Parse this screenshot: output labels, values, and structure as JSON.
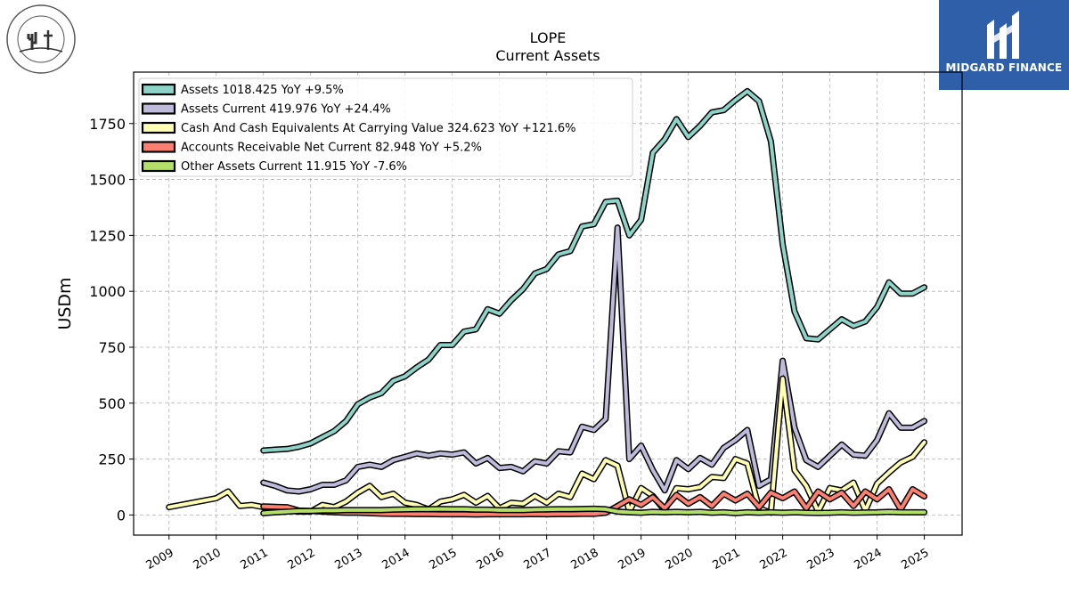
{
  "logos": {
    "left_org": "Grand Canyon University",
    "right_brand": "MIDGARD FINANCE",
    "right_color": "#2e5fa8"
  },
  "chart_data": {
    "type": "line",
    "title": "LOPE",
    "subtitle": "Current  Assets",
    "ylabel": "USDm",
    "xlabel": "",
    "xlim": [
      2008.25,
      2025.8
    ],
    "ylim": [
      -90,
      1980
    ],
    "x_ticks": [
      2009,
      2010,
      2011,
      2012,
      2013,
      2014,
      2015,
      2016,
      2017,
      2018,
      2019,
      2020,
      2021,
      2022,
      2023,
      2024,
      2025
    ],
    "y_ticks": [
      0,
      250,
      500,
      750,
      1000,
      1250,
      1500,
      1750
    ],
    "grid": true,
    "legend_position": "top-left",
    "series": [
      {
        "name": "Assets  1018.425 YoY +9.5%",
        "color": "#8dd3c7",
        "points": [
          [
            2011,
            288
          ],
          [
            2011.25,
            292
          ],
          [
            2011.5,
            295
          ],
          [
            2011.75,
            305
          ],
          [
            2012,
            320
          ],
          [
            2012.25,
            348
          ],
          [
            2012.5,
            375
          ],
          [
            2012.75,
            420
          ],
          [
            2013,
            495
          ],
          [
            2013.25,
            525
          ],
          [
            2013.5,
            545
          ],
          [
            2013.75,
            600
          ],
          [
            2014,
            620
          ],
          [
            2014.25,
            660
          ],
          [
            2014.5,
            695
          ],
          [
            2014.75,
            760
          ],
          [
            2015,
            760
          ],
          [
            2015.25,
            820
          ],
          [
            2015.5,
            830
          ],
          [
            2015.75,
            920
          ],
          [
            2016,
            900
          ],
          [
            2016.25,
            960
          ],
          [
            2016.5,
            1010
          ],
          [
            2016.75,
            1080
          ],
          [
            2017,
            1100
          ],
          [
            2017.25,
            1165
          ],
          [
            2017.5,
            1180
          ],
          [
            2017.75,
            1290
          ],
          [
            2018,
            1300
          ],
          [
            2018.25,
            1400
          ],
          [
            2018.5,
            1405
          ],
          [
            2018.75,
            1250
          ],
          [
            2019,
            1320
          ],
          [
            2019.25,
            1620
          ],
          [
            2019.5,
            1680
          ],
          [
            2019.75,
            1770
          ],
          [
            2020,
            1690
          ],
          [
            2020.25,
            1740
          ],
          [
            2020.5,
            1800
          ],
          [
            2020.75,
            1810
          ],
          [
            2021,
            1855
          ],
          [
            2021.25,
            1895
          ],
          [
            2021.5,
            1850
          ],
          [
            2021.75,
            1670
          ],
          [
            2022,
            1210
          ],
          [
            2022.25,
            910
          ],
          [
            2022.5,
            790
          ],
          [
            2022.75,
            785
          ],
          [
            2023,
            830
          ],
          [
            2023.25,
            875
          ],
          [
            2023.5,
            845
          ],
          [
            2023.75,
            865
          ],
          [
            2024,
            930
          ],
          [
            2024.25,
            1040
          ],
          [
            2024.5,
            990
          ],
          [
            2024.75,
            990
          ],
          [
            2025,
            1018
          ]
        ]
      },
      {
        "name": "Assets Current  419.976 YoY +24.4%",
        "color": "#bebada",
        "points": [
          [
            2011,
            145
          ],
          [
            2011.25,
            130
          ],
          [
            2011.5,
            110
          ],
          [
            2011.75,
            105
          ],
          [
            2012,
            115
          ],
          [
            2012.25,
            135
          ],
          [
            2012.5,
            135
          ],
          [
            2012.75,
            155
          ],
          [
            2013,
            215
          ],
          [
            2013.25,
            225
          ],
          [
            2013.5,
            215
          ],
          [
            2013.75,
            245
          ],
          [
            2014,
            260
          ],
          [
            2014.25,
            275
          ],
          [
            2014.5,
            265
          ],
          [
            2014.75,
            275
          ],
          [
            2015,
            270
          ],
          [
            2015.25,
            280
          ],
          [
            2015.5,
            230
          ],
          [
            2015.75,
            255
          ],
          [
            2016,
            210
          ],
          [
            2016.25,
            215
          ],
          [
            2016.5,
            195
          ],
          [
            2016.75,
            240
          ],
          [
            2017,
            230
          ],
          [
            2017.25,
            285
          ],
          [
            2017.5,
            280
          ],
          [
            2017.75,
            395
          ],
          [
            2018,
            380
          ],
          [
            2018.25,
            430
          ],
          [
            2018.5,
            1285
          ],
          [
            2018.75,
            250
          ],
          [
            2019,
            310
          ],
          [
            2019.25,
            200
          ],
          [
            2019.5,
            110
          ],
          [
            2019.75,
            245
          ],
          [
            2020,
            205
          ],
          [
            2020.25,
            255
          ],
          [
            2020.5,
            225
          ],
          [
            2020.75,
            300
          ],
          [
            2021,
            335
          ],
          [
            2021.25,
            380
          ],
          [
            2021.5,
            130
          ],
          [
            2021.75,
            160
          ],
          [
            2022,
            690
          ],
          [
            2022.25,
            390
          ],
          [
            2022.5,
            245
          ],
          [
            2022.75,
            215
          ],
          [
            2023,
            265
          ],
          [
            2023.25,
            315
          ],
          [
            2023.5,
            270
          ],
          [
            2023.75,
            265
          ],
          [
            2024,
            335
          ],
          [
            2024.25,
            455
          ],
          [
            2024.5,
            390
          ],
          [
            2024.75,
            390
          ],
          [
            2025,
            420
          ]
        ]
      },
      {
        "name": "Cash And Cash Equivalents At Carrying Value  324.623 YoY +121.6%",
        "color": "#ffffb3",
        "points": [
          [
            2009,
            35
          ],
          [
            2009.25,
            45
          ],
          [
            2009.5,
            55
          ],
          [
            2009.75,
            65
          ],
          [
            2010,
            75
          ],
          [
            2010.25,
            105
          ],
          [
            2010.5,
            40
          ],
          [
            2010.75,
            45
          ],
          [
            2011,
            35
          ],
          [
            2011.25,
            28
          ],
          [
            2011.5,
            20
          ],
          [
            2011.75,
            15
          ],
          [
            2012,
            15
          ],
          [
            2012.25,
            45
          ],
          [
            2012.5,
            35
          ],
          [
            2012.75,
            60
          ],
          [
            2013,
            100
          ],
          [
            2013.25,
            130
          ],
          [
            2013.5,
            80
          ],
          [
            2013.75,
            95
          ],
          [
            2014,
            55
          ],
          [
            2014.25,
            45
          ],
          [
            2014.5,
            25
          ],
          [
            2014.75,
            60
          ],
          [
            2015,
            70
          ],
          [
            2015.25,
            90
          ],
          [
            2015.5,
            55
          ],
          [
            2015.75,
            85
          ],
          [
            2016,
            30
          ],
          [
            2016.25,
            55
          ],
          [
            2016.5,
            50
          ],
          [
            2016.75,
            85
          ],
          [
            2017,
            55
          ],
          [
            2017.25,
            95
          ],
          [
            2017.5,
            80
          ],
          [
            2017.75,
            185
          ],
          [
            2018,
            160
          ],
          [
            2018.25,
            245
          ],
          [
            2018.5,
            220
          ],
          [
            2018.75,
            15
          ],
          [
            2019,
            120
          ],
          [
            2019.25,
            85
          ],
          [
            2019.5,
            20
          ],
          [
            2019.75,
            120
          ],
          [
            2020,
            115
          ],
          [
            2020.25,
            125
          ],
          [
            2020.5,
            170
          ],
          [
            2020.75,
            165
          ],
          [
            2021,
            250
          ],
          [
            2021.25,
            230
          ],
          [
            2021.5,
            30
          ],
          [
            2021.75,
            10
          ],
          [
            2022,
            610
          ],
          [
            2022.25,
            200
          ],
          [
            2022.5,
            130
          ],
          [
            2022.75,
            15
          ],
          [
            2023,
            120
          ],
          [
            2023.25,
            110
          ],
          [
            2023.5,
            145
          ],
          [
            2023.75,
            20
          ],
          [
            2024,
            140
          ],
          [
            2024.25,
            190
          ],
          [
            2024.5,
            235
          ],
          [
            2024.75,
            260
          ],
          [
            2025,
            325
          ]
        ]
      },
      {
        "name": "Accounts Receivable Net Current  82.948 YoY +5.2%",
        "color": "#fb8072",
        "points": [
          [
            2011,
            38
          ],
          [
            2011.25,
            36
          ],
          [
            2011.5,
            35
          ],
          [
            2011.75,
            20
          ],
          [
            2012,
            18
          ],
          [
            2012.25,
            15
          ],
          [
            2012.5,
            12
          ],
          [
            2012.75,
            10
          ],
          [
            2013,
            10
          ],
          [
            2013.25,
            8
          ],
          [
            2013.5,
            6
          ],
          [
            2013.75,
            5
          ],
          [
            2014,
            5
          ],
          [
            2014.25,
            4
          ],
          [
            2014.5,
            4
          ],
          [
            2014.75,
            3
          ],
          [
            2015,
            3
          ],
          [
            2015.25,
            3
          ],
          [
            2015.5,
            2
          ],
          [
            2015.75,
            3
          ],
          [
            2016,
            3
          ],
          [
            2016.25,
            3
          ],
          [
            2016.5,
            3
          ],
          [
            2016.75,
            4
          ],
          [
            2017,
            3
          ],
          [
            2017.25,
            4
          ],
          [
            2017.5,
            4
          ],
          [
            2017.75,
            5
          ],
          [
            2018,
            5
          ],
          [
            2018.25,
            10
          ],
          [
            2018.5,
            40
          ],
          [
            2018.75,
            70
          ],
          [
            2019,
            45
          ],
          [
            2019.25,
            80
          ],
          [
            2019.5,
            30
          ],
          [
            2019.75,
            90
          ],
          [
            2020,
            50
          ],
          [
            2020.25,
            80
          ],
          [
            2020.5,
            40
          ],
          [
            2020.75,
            95
          ],
          [
            2021,
            65
          ],
          [
            2021.25,
            95
          ],
          [
            2021.5,
            35
          ],
          [
            2021.75,
            100
          ],
          [
            2022,
            75
          ],
          [
            2022.25,
            105
          ],
          [
            2022.5,
            30
          ],
          [
            2022.75,
            105
          ],
          [
            2023,
            70
          ],
          [
            2023.25,
            100
          ],
          [
            2023.5,
            40
          ],
          [
            2023.75,
            105
          ],
          [
            2024,
            70
          ],
          [
            2024.25,
            115
          ],
          [
            2024.5,
            25
          ],
          [
            2024.75,
            115
          ],
          [
            2025,
            83
          ]
        ]
      },
      {
        "name": "Other Assets Current  11.915 YoY -7.6%",
        "color": "#b3de69",
        "points": [
          [
            2011,
            8
          ],
          [
            2011.25,
            12
          ],
          [
            2011.5,
            15
          ],
          [
            2011.75,
            18
          ],
          [
            2012,
            18
          ],
          [
            2012.25,
            20
          ],
          [
            2012.5,
            20
          ],
          [
            2012.75,
            22
          ],
          [
            2013,
            22
          ],
          [
            2013.25,
            22
          ],
          [
            2013.5,
            22
          ],
          [
            2013.75,
            24
          ],
          [
            2014,
            25
          ],
          [
            2014.25,
            26
          ],
          [
            2014.5,
            26
          ],
          [
            2014.75,
            27
          ],
          [
            2015,
            26
          ],
          [
            2015.25,
            26
          ],
          [
            2015.5,
            24
          ],
          [
            2015.75,
            24
          ],
          [
            2016,
            22
          ],
          [
            2016.25,
            22
          ],
          [
            2016.5,
            22
          ],
          [
            2016.75,
            24
          ],
          [
            2017,
            25
          ],
          [
            2017.25,
            26
          ],
          [
            2017.5,
            26
          ],
          [
            2017.75,
            27
          ],
          [
            2018,
            28
          ],
          [
            2018.25,
            26
          ],
          [
            2018.5,
            15
          ],
          [
            2018.75,
            12
          ],
          [
            2019,
            10
          ],
          [
            2019.25,
            14
          ],
          [
            2019.5,
            12
          ],
          [
            2019.75,
            14
          ],
          [
            2020,
            12
          ],
          [
            2020.25,
            14
          ],
          [
            2020.5,
            10
          ],
          [
            2020.75,
            12
          ],
          [
            2021,
            8
          ],
          [
            2021.25,
            12
          ],
          [
            2021.5,
            10
          ],
          [
            2021.75,
            12
          ],
          [
            2022,
            10
          ],
          [
            2022.25,
            12
          ],
          [
            2022.5,
            10
          ],
          [
            2022.75,
            9
          ],
          [
            2023,
            10
          ],
          [
            2023.25,
            12
          ],
          [
            2023.5,
            10
          ],
          [
            2023.75,
            11
          ],
          [
            2024,
            12
          ],
          [
            2024.25,
            14
          ],
          [
            2024.5,
            12
          ],
          [
            2024.75,
            12
          ],
          [
            2025,
            12
          ]
        ]
      }
    ]
  }
}
